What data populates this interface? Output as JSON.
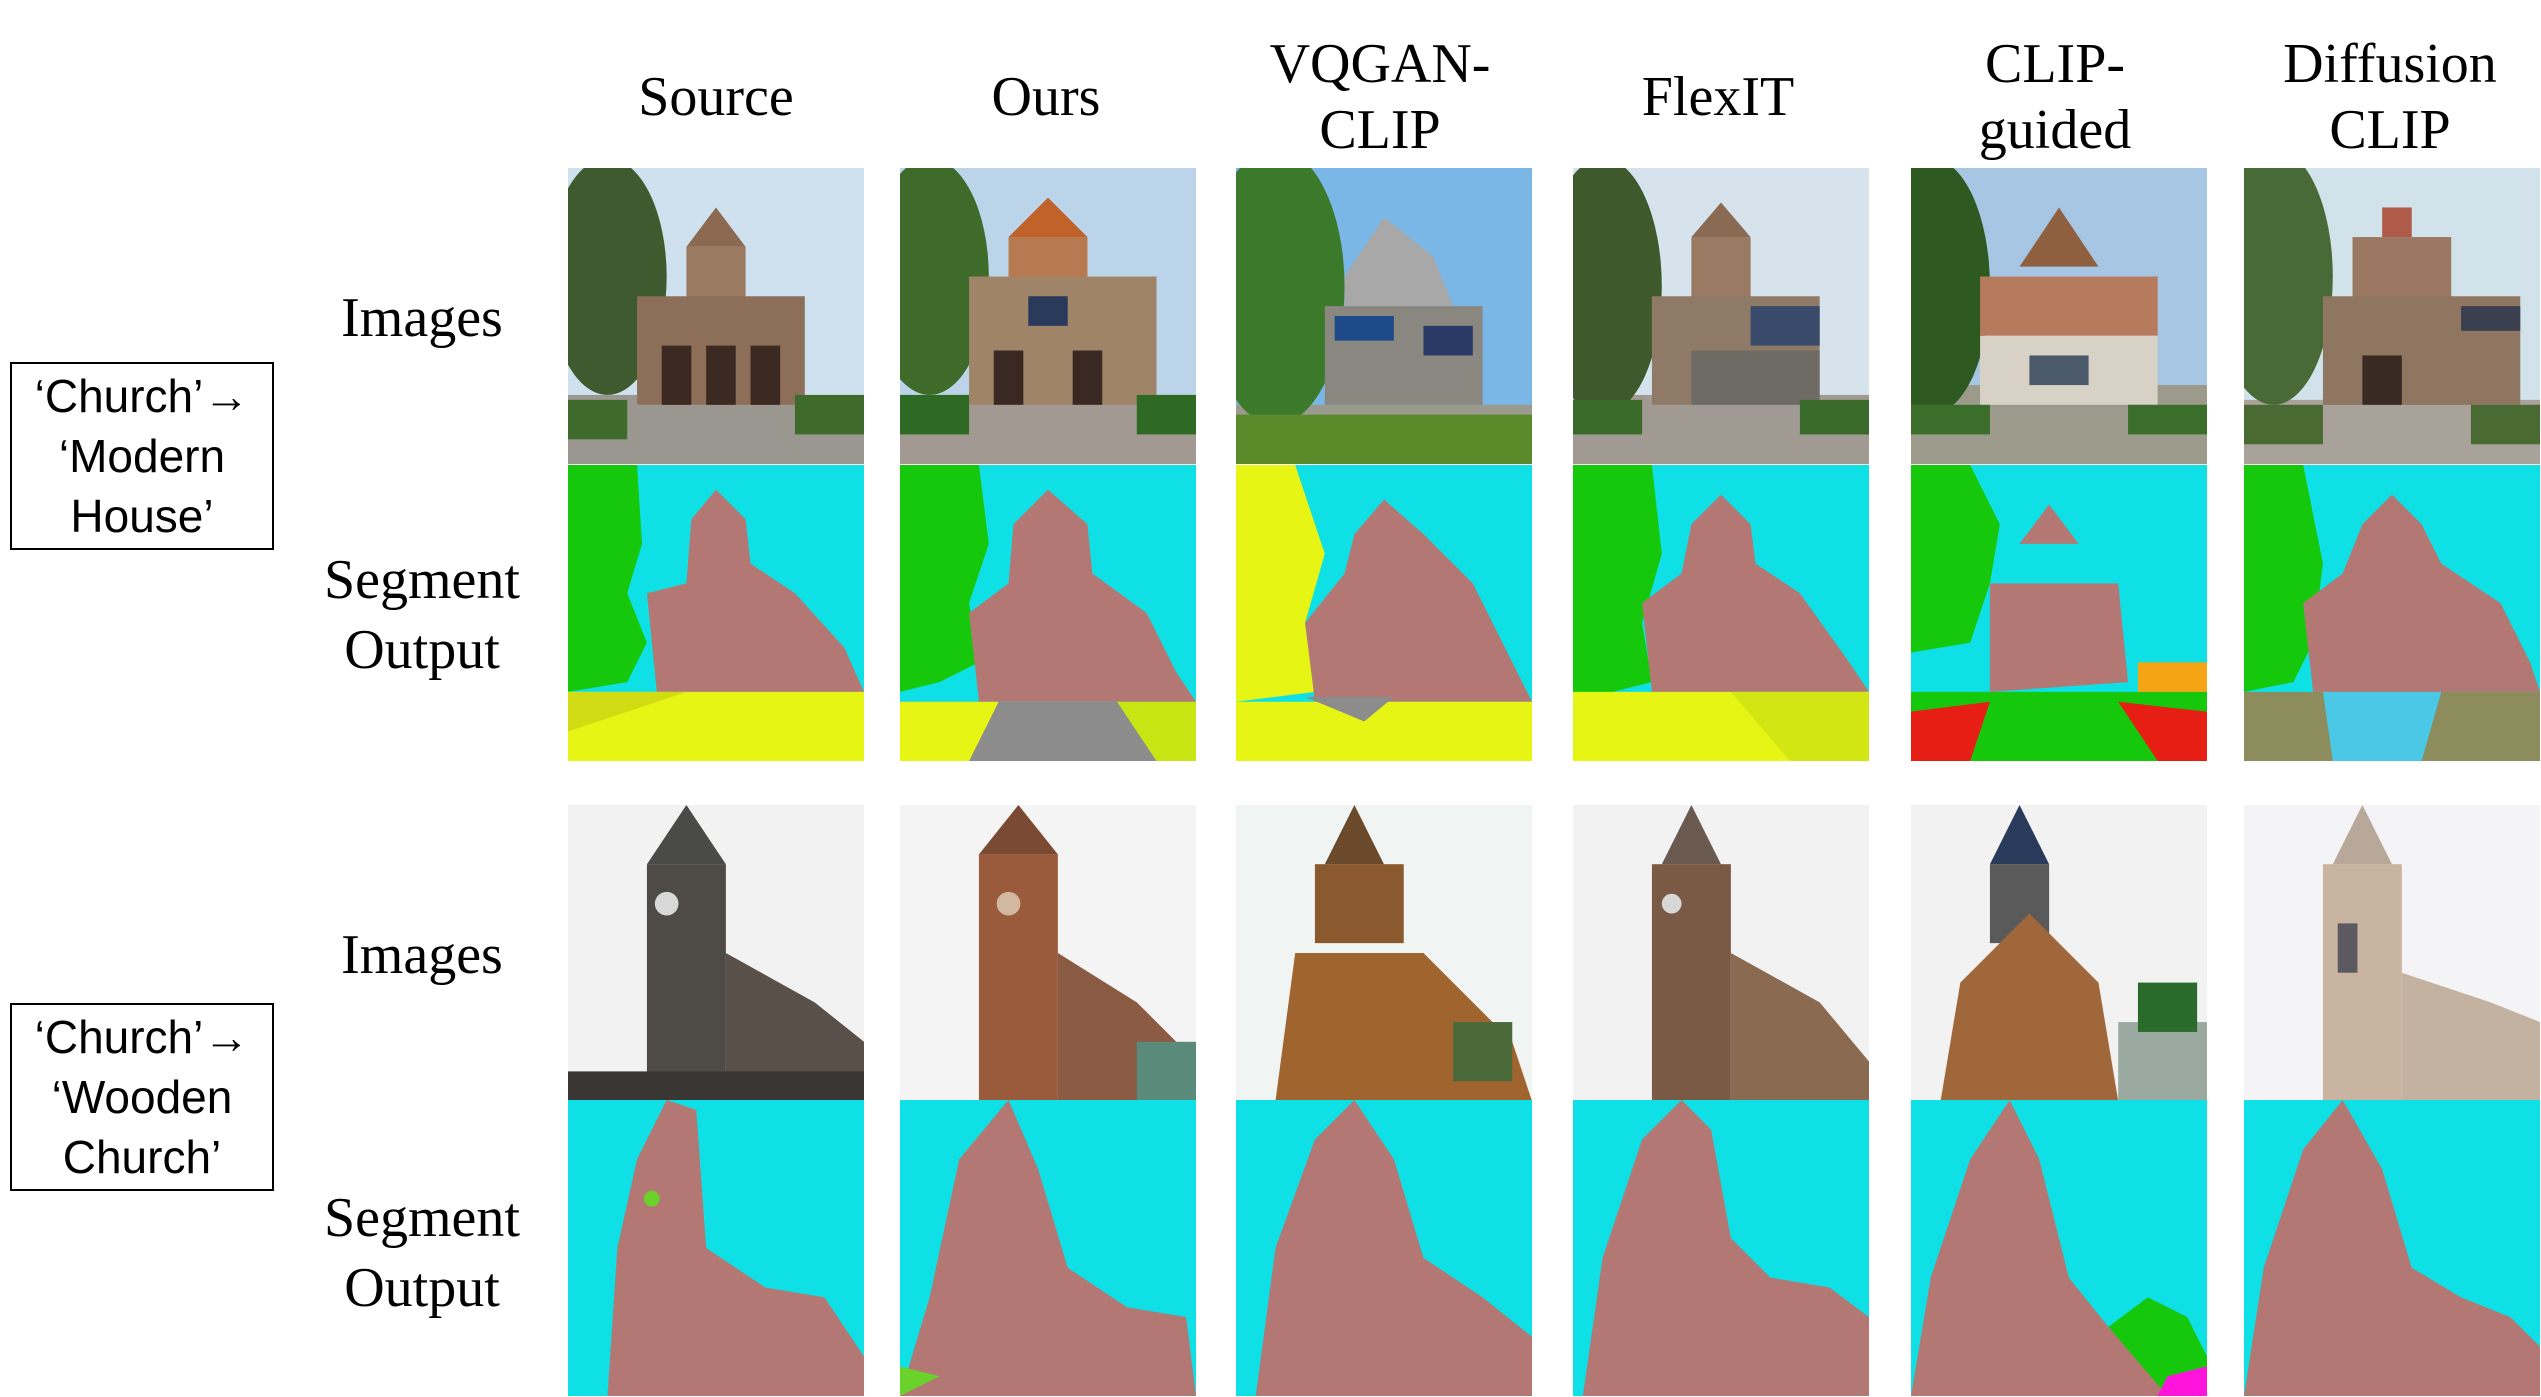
{
  "columns": [
    "Source",
    "Ours",
    "VQGAN-\nCLIP",
    "FlexIT",
    "CLIP-\nguided",
    "Diffusion\nCLIP"
  ],
  "row_labels": {
    "images": "Images",
    "segment": "Segment\nOutput"
  },
  "groups": [
    {
      "prompt": "‘Church’→\n‘Modern\nHouse’"
    },
    {
      "prompt": "‘Church’→\n‘Wooden\nChurch’"
    }
  ],
  "colors": {
    "sky_seg": "#0ee0e6",
    "building_seg": "#b47874",
    "tree_seg": "#16c80c",
    "grass_seg": "#e6f514",
    "road_seg": "#8c8c8c",
    "red_seg": "#e61e14",
    "magenta_seg": "#ff14dc"
  }
}
